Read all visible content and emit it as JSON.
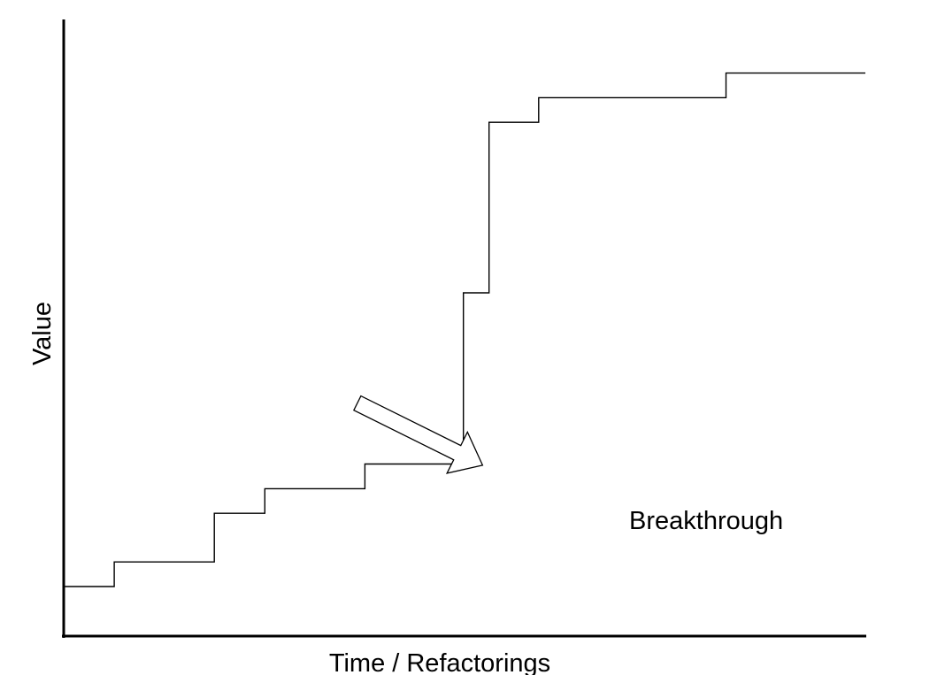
{
  "chart_data": {
    "type": "line",
    "style": "step",
    "title": "",
    "xlabel": "Time / Refactorings",
    "ylabel": "Value",
    "ticks": "none",
    "grid": false,
    "legend": "none",
    "xlim": [
      0,
      100
    ],
    "ylim": [
      0,
      100
    ],
    "series": [
      {
        "x": [
          0,
          6.2,
          6.2,
          18.7,
          18.7,
          25,
          25,
          37.5,
          37.5,
          49.8,
          49.8,
          53,
          53,
          59.2,
          59.2,
          82.6,
          82.6,
          100
        ],
        "y": [
          7.9,
          7.9,
          11.9,
          11.9,
          19.8,
          19.8,
          23.8,
          23.8,
          27.8,
          27.8,
          55.6,
          55.6,
          83.3,
          83.3,
          87.3,
          87.3,
          91.3,
          91.3
        ]
      }
    ],
    "annotations": [
      {
        "text": "Breakthrough",
        "arrow_to": [
          52.2,
          27.6
        ]
      }
    ],
    "colors": {
      "line": "#000000",
      "axes": "#000000",
      "background": "#ffffff"
    }
  }
}
